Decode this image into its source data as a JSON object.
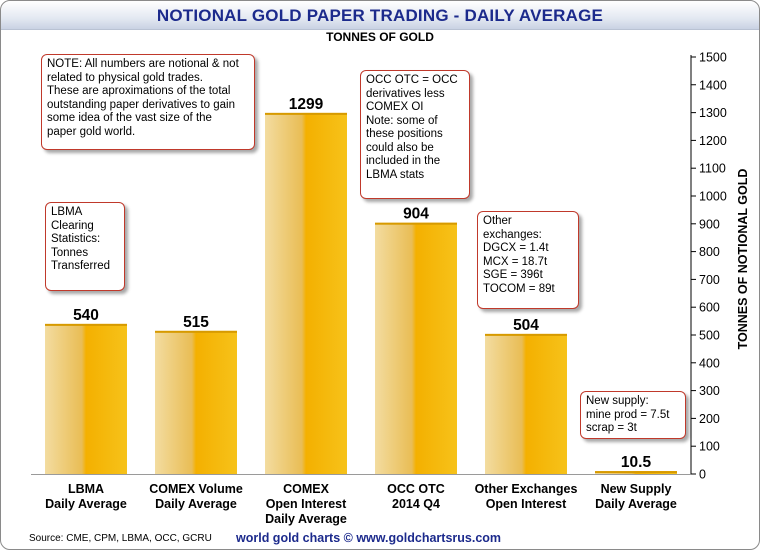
{
  "chart_data": {
    "type": "bar",
    "title": "NOTIONAL GOLD PAPER TRADING - DAILY AVERAGE",
    "subtitle": "TONNES OF GOLD",
    "ylabel": "TONNES OF NOTIONAL GOLD",
    "xlabel": "",
    "ylim": [
      0,
      1500
    ],
    "yticks": [
      0,
      100,
      200,
      300,
      400,
      500,
      600,
      700,
      800,
      900,
      1000,
      1100,
      1200,
      1300,
      1400,
      1500
    ],
    "y_axis_side": "right",
    "grid": false,
    "categories": [
      [
        "LBMA",
        "Daily Average"
      ],
      [
        "COMEX Volume",
        "Daily Average"
      ],
      [
        "COMEX",
        "Open Interest",
        "Daily Average"
      ],
      [
        "OCC OTC",
        "2014 Q4"
      ],
      [
        "Other Exchanges",
        "Open Interest"
      ],
      [
        "New Supply",
        "Daily Average"
      ]
    ],
    "values": [
      540,
      515,
      1299,
      904,
      504,
      10.5
    ],
    "value_labels": [
      "540",
      "515",
      "1299",
      "904",
      "504",
      "10.5"
    ],
    "bar_colors": {
      "light": "#f3dca0",
      "mid": "#e9bd55",
      "dark": "#f0a800"
    }
  },
  "notes": [
    {
      "id": "disclaimer",
      "lines": [
        "NOTE: All numbers are notional & not",
        "related to physical gold trades.",
        "These are aproximations of the total",
        "outstanding paper derivatives to gain",
        "some idea of the vast size of the",
        "paper gold world."
      ]
    },
    {
      "id": "occ",
      "lines": [
        "OCC OTC = OCC",
        "derivatives less",
        "COMEX OI",
        "Note: some of",
        "these positions",
        "could also be",
        "included in the",
        "LBMA stats"
      ]
    },
    {
      "id": "lbma",
      "lines": [
        "LBMA",
        "Clearing",
        "Statistics:",
        "Tonnes",
        "Transferred"
      ]
    },
    {
      "id": "other",
      "lines": [
        "Other",
        "exchanges:",
        "DGCX = 1.4t",
        "MCX = 18.7t",
        "SGE = 396t",
        "TOCOM = 89t"
      ]
    },
    {
      "id": "supply",
      "lines": [
        "New supply:",
        "mine prod = 7.5t",
        "scrap = 3t"
      ]
    }
  ],
  "footer": {
    "source": "Source: CME, CPM, LBMA, OCC, GCRU",
    "credit": "world gold charts © www.goldchartsrus.com"
  },
  "colors": {
    "title": "#1c2a8c",
    "note_border": "#c0392b"
  }
}
